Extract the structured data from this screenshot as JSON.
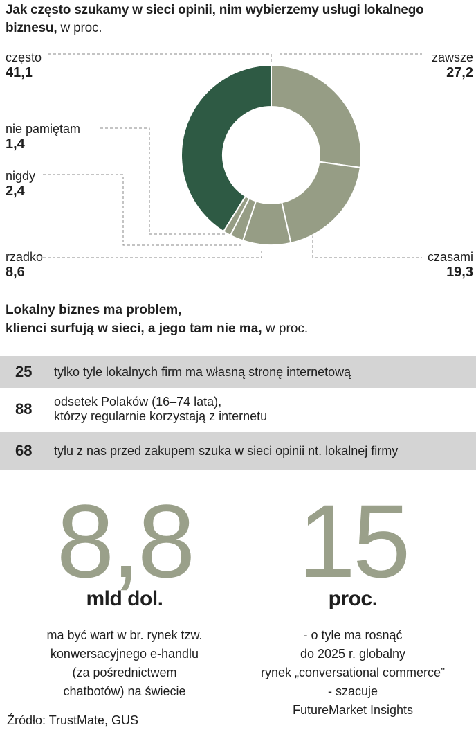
{
  "header": {
    "title": "Jak często szukamy w sieci opinii, nim wybierzemy usługi lokalnego biznesu,",
    "unit": "w proc."
  },
  "chart_data": {
    "type": "pie",
    "style": "donut",
    "slices": [
      {
        "label": "zawsze",
        "value": 27.2,
        "value_text": "27,2",
        "color": "#969d85"
      },
      {
        "label": "czasami",
        "value": 19.3,
        "value_text": "19,3",
        "color": "#969d85"
      },
      {
        "label": "rzadko",
        "value": 8.6,
        "value_text": "8,6",
        "color": "#969d85"
      },
      {
        "label": "nigdy",
        "value": 2.4,
        "value_text": "2,4",
        "color": "#969d85"
      },
      {
        "label": "nie pamiętam",
        "value": 1.4,
        "value_text": "1,4",
        "color": "#969d85"
      },
      {
        "label": "często",
        "value": 41.1,
        "value_text": "41,1",
        "color": "#2e5a44"
      }
    ]
  },
  "section2": {
    "title_line1": "Lokalny biznes ma problem,",
    "title_line2": "klienci surfują w sieci, a jego tam nie ma,",
    "unit": "w proc.",
    "rows": [
      {
        "number": "25",
        "text1": "tylko tyle lokalnych firm ma własną stronę internetową",
        "text2": ""
      },
      {
        "number": "88",
        "text1": "odsetek Polaków (16–74 lata),",
        "text2": "którzy regularnie korzystają z internetu"
      },
      {
        "number": "68",
        "text1": "tylu z nas przed zakupem szuka w sieci opinii nt. lokalnej firmy",
        "text2": ""
      }
    ]
  },
  "highlights": [
    {
      "number": "8,8",
      "unit": "mld dol.",
      "lines": [
        "ma być wart w br. rynek tzw.",
        "konwersacyjnego e-handlu",
        "(za pośrednictwem",
        "chatbotów) na świecie"
      ]
    },
    {
      "number": "15",
      "unit": "proc.",
      "lines": [
        "- o tyle ma rosnąć",
        "do 2025 r. globalny",
        "rynek „conversational commerce”",
        "- szacuje",
        "FutureMarket Insights"
      ]
    }
  ],
  "source": "Źródło: TrustMate, GUS"
}
